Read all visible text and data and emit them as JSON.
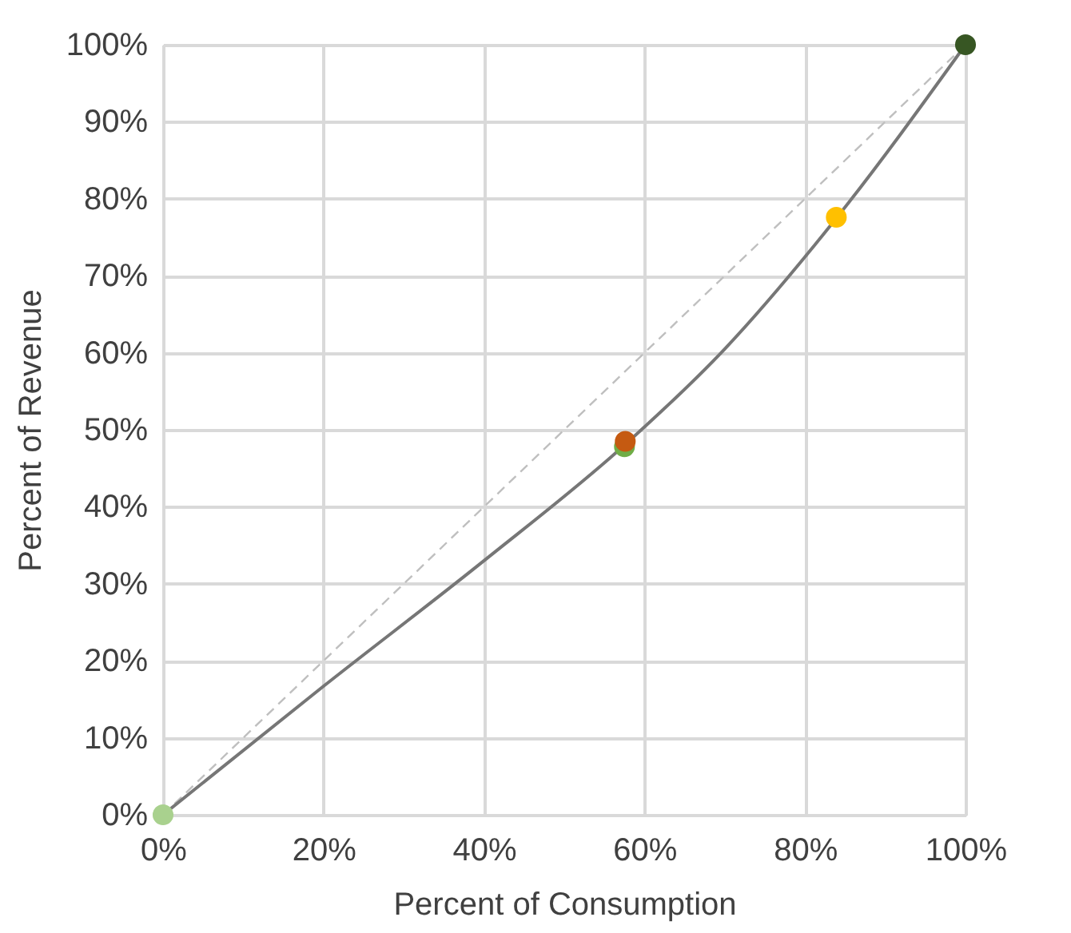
{
  "chart_data": {
    "type": "line",
    "xlabel": "Percent of Consumption",
    "ylabel": "Percent of Revenue",
    "xlim": [
      0,
      100
    ],
    "ylim": [
      0,
      100
    ],
    "xticks": [
      {
        "value": 0,
        "label": "0%"
      },
      {
        "value": 20,
        "label": "20%"
      },
      {
        "value": 40,
        "label": "40%"
      },
      {
        "value": 60,
        "label": "60%"
      },
      {
        "value": 80,
        "label": "80%"
      },
      {
        "value": 100,
        "label": "100%"
      }
    ],
    "yticks": [
      {
        "value": 0,
        "label": "0%"
      },
      {
        "value": 10,
        "label": "10%"
      },
      {
        "value": 20,
        "label": "20%"
      },
      {
        "value": 30,
        "label": "30%"
      },
      {
        "value": 40,
        "label": "40%"
      },
      {
        "value": 50,
        "label": "50%"
      },
      {
        "value": 60,
        "label": "60%"
      },
      {
        "value": 70,
        "label": "70%"
      },
      {
        "value": 80,
        "label": "80%"
      },
      {
        "value": 90,
        "label": "90%"
      },
      {
        "value": 100,
        "label": "100%"
      }
    ],
    "grid": true,
    "legend": false,
    "series": [
      {
        "type": "line",
        "color": "#bfbfbf",
        "line_style": "dashed",
        "x": [
          0,
          100
        ],
        "values": [
          0,
          100
        ]
      },
      {
        "type": "line",
        "color": "#767676",
        "line_style": "solid",
        "x": [
          0,
          20,
          40,
          57.5,
          70,
          84,
          100
        ],
        "values": [
          0,
          16.7,
          33,
          48,
          60.5,
          77.6,
          100
        ]
      },
      {
        "type": "scatter",
        "marker": "circle",
        "x": [
          0,
          57.5,
          57.6,
          83.9,
          100
        ],
        "values": [
          0,
          47.8,
          48.5,
          77.6,
          100
        ],
        "colors": [
          "#a9d18e",
          "#70ad47",
          "#c55a11",
          "#ffc000",
          "#375623"
        ]
      }
    ]
  }
}
